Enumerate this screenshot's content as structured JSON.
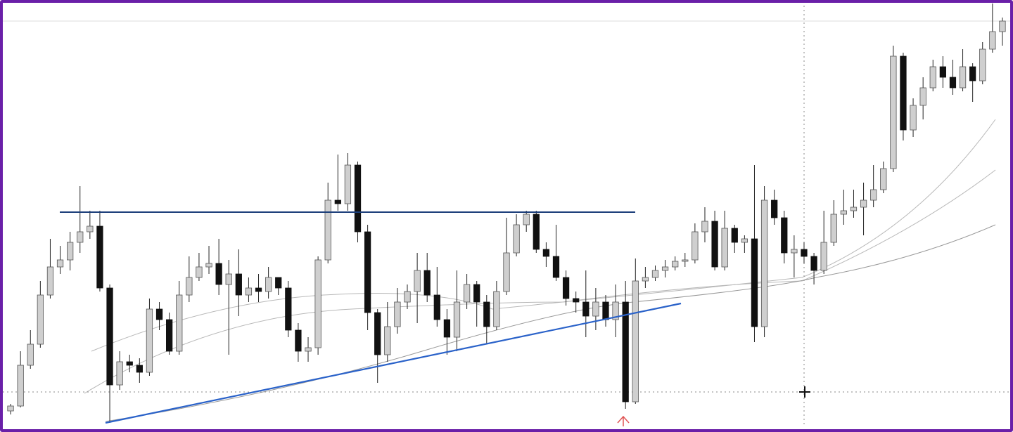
{
  "chart_data": {
    "type": "candlestick",
    "ylim": [
      0,
      600
    ],
    "up_color": "#cfcfcf",
    "down_color": "#111111",
    "open": [
      22,
      29,
      87,
      117,
      187,
      227,
      237,
      262,
      277,
      285,
      197,
      59,
      92,
      87,
      77,
      167,
      152,
      107,
      187,
      212,
      227,
      232,
      202,
      217,
      187,
      197,
      192,
      212,
      197,
      137,
      107,
      112,
      237,
      322,
      317,
      372,
      277,
      162,
      102,
      142,
      177,
      192,
      222,
      187,
      152,
      127,
      177,
      202,
      177,
      142,
      192,
      247,
      287,
      302,
      252,
      242,
      212,
      182,
      177,
      157,
      177,
      152,
      177,
      35,
      207,
      212,
      222,
      227,
      235,
      237,
      277,
      292,
      227,
      282,
      262,
      267,
      142,
      322,
      297,
      247,
      252,
      242,
      222,
      262,
      302,
      307,
      312,
      322,
      337,
      367,
      527,
      422,
      457,
      482,
      512,
      497,
      482,
      512,
      492,
      537,
      562
    ],
    "high": [
      32,
      107,
      137,
      207,
      267,
      257,
      277,
      342,
      307,
      307,
      202,
      107,
      102,
      97,
      182,
      177,
      162,
      207,
      242,
      247,
      257,
      267,
      237,
      252,
      212,
      217,
      227,
      212,
      207,
      147,
      127,
      242,
      347,
      387,
      389,
      377,
      287,
      167,
      177,
      197,
      202,
      247,
      247,
      227,
      167,
      222,
      217,
      207,
      187,
      207,
      297,
      302,
      307,
      307,
      262,
      287,
      222,
      192,
      222,
      197,
      187,
      202,
      207,
      239,
      227,
      229,
      237,
      242,
      247,
      289,
      312,
      307,
      307,
      287,
      272,
      372,
      342,
      337,
      307,
      272,
      262,
      247,
      307,
      322,
      337,
      337,
      347,
      372,
      377,
      542,
      532,
      467,
      497,
      522,
      527,
      522,
      537,
      517,
      547,
      602,
      582
    ],
    "low": [
      17,
      27,
      82,
      112,
      182,
      217,
      222,
      247,
      267,
      192,
      5,
      52,
      77,
      62,
      72,
      137,
      102,
      102,
      177,
      207,
      217,
      187,
      102,
      157,
      177,
      177,
      182,
      187,
      127,
      92,
      92,
      102,
      232,
      307,
      307,
      262,
      137,
      62,
      92,
      132,
      167,
      147,
      177,
      142,
      102,
      107,
      167,
      142,
      117,
      137,
      187,
      242,
      277,
      247,
      227,
      207,
      172,
      162,
      127,
      137,
      142,
      127,
      25,
      32,
      197,
      207,
      212,
      222,
      227,
      232,
      262,
      222,
      222,
      247,
      247,
      120,
      127,
      287,
      232,
      212,
      232,
      202,
      217,
      257,
      287,
      297,
      272,
      312,
      332,
      362,
      407,
      412,
      437,
      477,
      482,
      472,
      477,
      462,
      487,
      532,
      542
    ],
    "close": [
      29,
      87,
      117,
      187,
      227,
      237,
      262,
      277,
      285,
      197,
      59,
      92,
      87,
      77,
      167,
      152,
      107,
      187,
      212,
      227,
      232,
      202,
      217,
      187,
      197,
      192,
      212,
      197,
      137,
      107,
      112,
      237,
      322,
      317,
      372,
      277,
      162,
      102,
      142,
      177,
      192,
      222,
      187,
      152,
      127,
      177,
      202,
      177,
      142,
      192,
      247,
      287,
      302,
      252,
      242,
      212,
      182,
      177,
      157,
      177,
      152,
      177,
      35,
      207,
      212,
      222,
      227,
      235,
      237,
      277,
      292,
      227,
      282,
      262,
      267,
      142,
      322,
      297,
      247,
      252,
      242,
      222,
      262,
      302,
      307,
      312,
      322,
      337,
      367,
      527,
      422,
      457,
      482,
      512,
      497,
      482,
      512,
      492,
      537,
      562,
      577
    ]
  }
}
